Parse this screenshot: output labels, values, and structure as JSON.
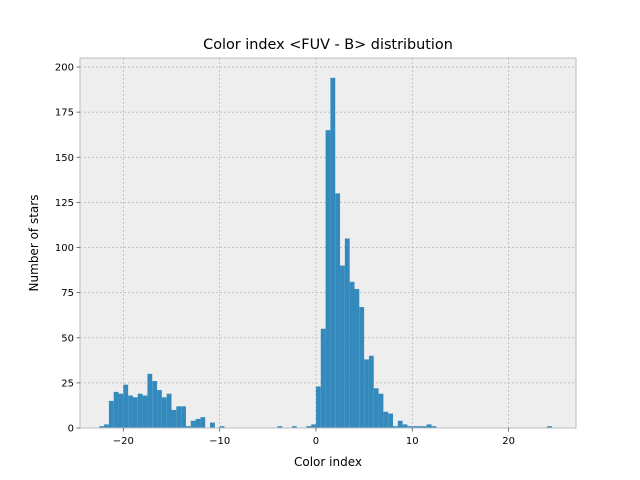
{
  "chart_data": {
    "type": "bar",
    "title": "Color index <FUV - B> distribution",
    "xlabel": "Color index",
    "ylabel": "Number of stars",
    "xlim": [
      -24.5,
      27
    ],
    "ylim": [
      0,
      205
    ],
    "xticks": [
      -20,
      -10,
      0,
      10,
      20
    ],
    "yticks": [
      0,
      25,
      50,
      75,
      100,
      125,
      150,
      175,
      200
    ],
    "grid": true,
    "bar_color": "#348abd",
    "bin_width": 0.5,
    "bins": [
      {
        "x": -22.5,
        "value": 1
      },
      {
        "x": -22.0,
        "value": 2
      },
      {
        "x": -21.5,
        "value": 15
      },
      {
        "x": -21.0,
        "value": 20
      },
      {
        "x": -20.5,
        "value": 19
      },
      {
        "x": -20.0,
        "value": 24
      },
      {
        "x": -19.5,
        "value": 18
      },
      {
        "x": -19.0,
        "value": 17
      },
      {
        "x": -18.5,
        "value": 19
      },
      {
        "x": -18.0,
        "value": 18
      },
      {
        "x": -17.5,
        "value": 30
      },
      {
        "x": -17.0,
        "value": 26
      },
      {
        "x": -16.5,
        "value": 21
      },
      {
        "x": -16.0,
        "value": 17
      },
      {
        "x": -15.5,
        "value": 19
      },
      {
        "x": -15.0,
        "value": 10
      },
      {
        "x": -14.5,
        "value": 12
      },
      {
        "x": -14.0,
        "value": 12
      },
      {
        "x": -13.5,
        "value": 1
      },
      {
        "x": -13.0,
        "value": 4
      },
      {
        "x": -12.5,
        "value": 5
      },
      {
        "x": -12.0,
        "value": 6
      },
      {
        "x": -11.0,
        "value": 3
      },
      {
        "x": -10.0,
        "value": 1
      },
      {
        "x": -4.0,
        "value": 1
      },
      {
        "x": -2.5,
        "value": 1
      },
      {
        "x": -1.0,
        "value": 1
      },
      {
        "x": -0.5,
        "value": 2
      },
      {
        "x": 0.0,
        "value": 23
      },
      {
        "x": 0.5,
        "value": 55
      },
      {
        "x": 1.0,
        "value": 165
      },
      {
        "x": 1.5,
        "value": 194
      },
      {
        "x": 2.0,
        "value": 130
      },
      {
        "x": 2.5,
        "value": 90
      },
      {
        "x": 3.0,
        "value": 105
      },
      {
        "x": 3.5,
        "value": 81
      },
      {
        "x": 4.0,
        "value": 77
      },
      {
        "x": 4.5,
        "value": 67
      },
      {
        "x": 5.0,
        "value": 38
      },
      {
        "x": 5.5,
        "value": 40
      },
      {
        "x": 6.0,
        "value": 22
      },
      {
        "x": 6.5,
        "value": 19
      },
      {
        "x": 7.0,
        "value": 9
      },
      {
        "x": 7.5,
        "value": 8
      },
      {
        "x": 8.0,
        "value": 1
      },
      {
        "x": 8.5,
        "value": 4
      },
      {
        "x": 9.0,
        "value": 2
      },
      {
        "x": 9.5,
        "value": 1
      },
      {
        "x": 10.0,
        "value": 1
      },
      {
        "x": 10.5,
        "value": 1
      },
      {
        "x": 11.0,
        "value": 1
      },
      {
        "x": 11.5,
        "value": 2
      },
      {
        "x": 12.0,
        "value": 1
      },
      {
        "x": 24.0,
        "value": 1
      }
    ]
  }
}
